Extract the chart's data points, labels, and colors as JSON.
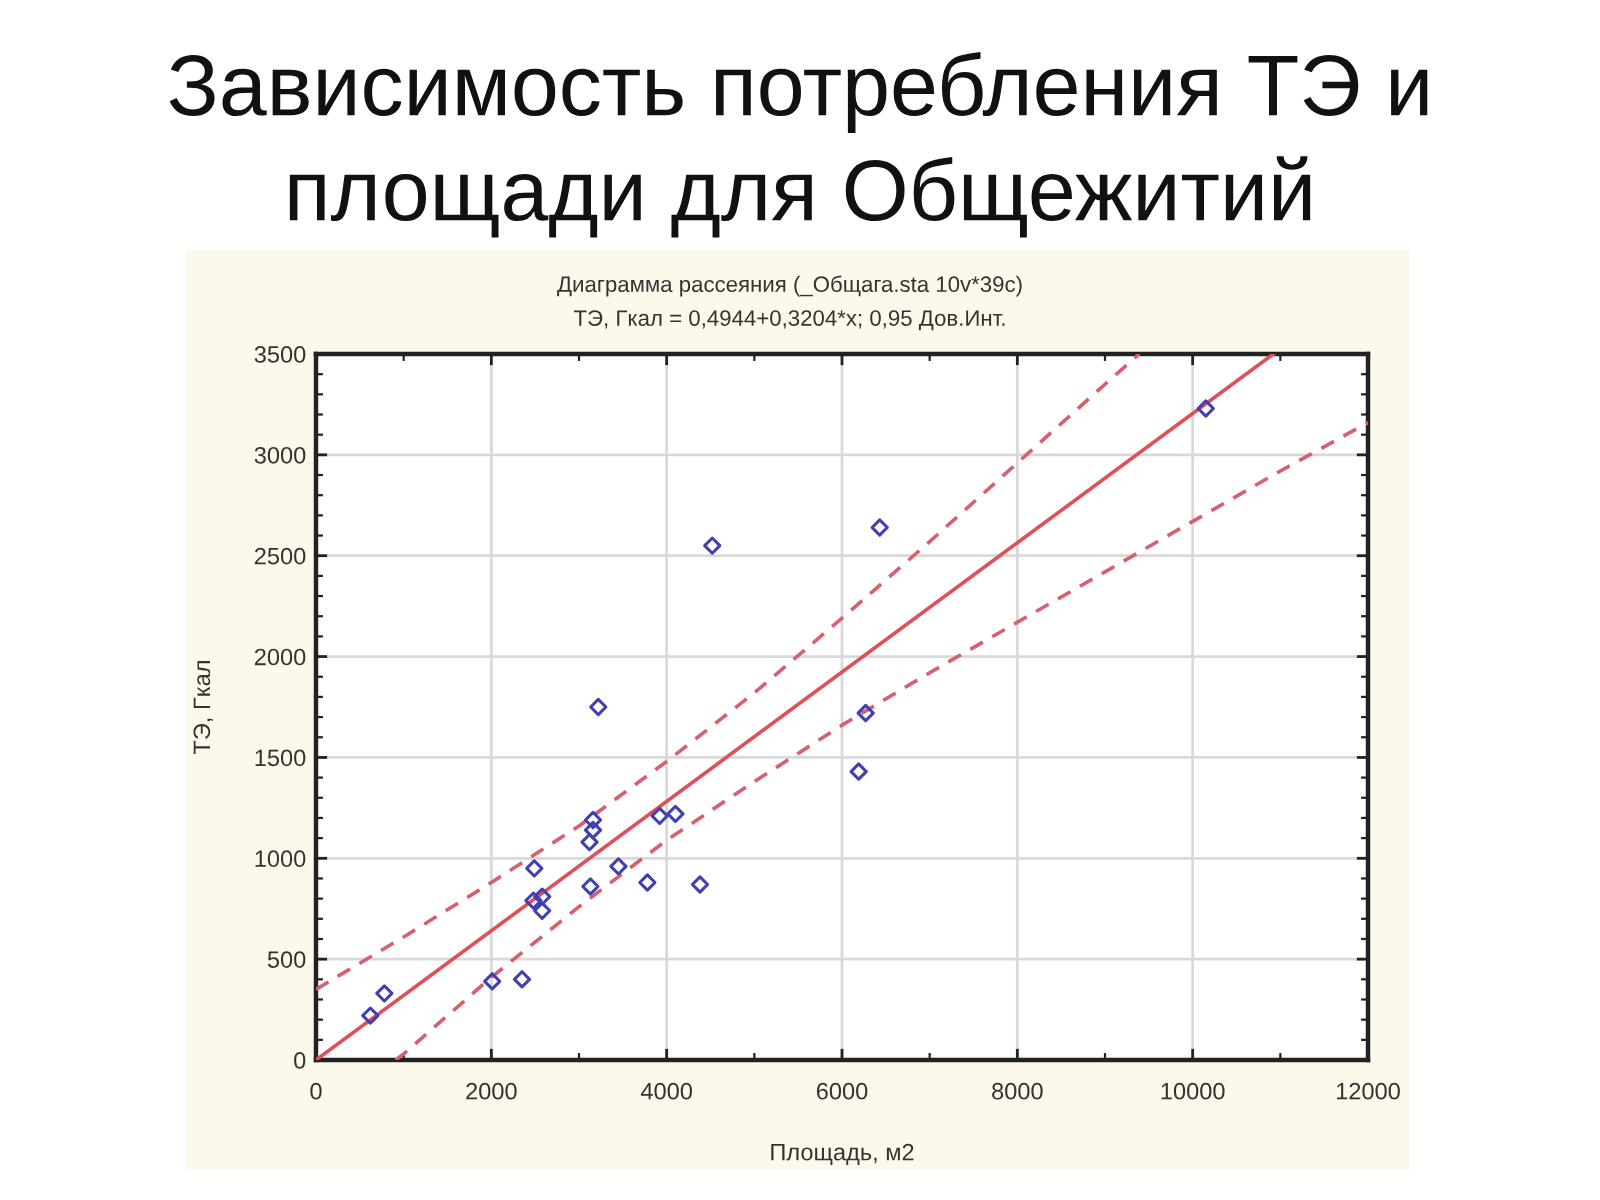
{
  "chart_data": {
    "type": "scatter",
    "title": "Зависимость потребления ТЭ и\nплощади для Общежитий",
    "subtitle": "Диаграмма рассеяния (_Общага.sta 10v*39c)",
    "annotations": [
      "ТЭ, Гкал = 0,4944+0,3204*x; 0,95 Дов.Инт."
    ],
    "xlabel": "Площадь, м2",
    "ylabel": "ТЭ, Гкал",
    "series": [
      {
        "color": "#4040b0",
        "marker": "diamond",
        "x": [
          620,
          780,
          2010,
          2350,
          2480,
          2490,
          2580,
          2580,
          3120,
          3130,
          3160,
          3160,
          3220,
          3450,
          3780,
          3920,
          4100,
          4380,
          4520,
          6190,
          6270,
          6430,
          10150
        ],
        "values": [
          220,
          330,
          390,
          400,
          790,
          950,
          810,
          740,
          1080,
          860,
          1140,
          1190,
          1750,
          960,
          880,
          1210,
          1220,
          870,
          2550,
          1430,
          1720,
          2640,
          3230
        ]
      },
      {
        "type": "line",
        "color": "#e0505a",
        "line_style": "solid",
        "x": [
          0,
          10920
        ],
        "values": [
          0,
          3500
        ]
      },
      {
        "type": "line",
        "color": "#d8606e",
        "line_style": "dashed",
        "x": [
          0,
          1000,
          2000,
          3000,
          4000,
          5000,
          6000,
          7000,
          8000,
          9000,
          9390
        ],
        "values": [
          350,
          610,
          880,
          1160,
          1480,
          1820,
          2190,
          2570,
          2960,
          3350,
          3500
        ]
      },
      {
        "type": "line",
        "color": "#d8606e",
        "line_style": "dashed",
        "x": [
          910,
          1000,
          2000,
          3000,
          4000,
          5000,
          6000,
          7000,
          8000,
          9000,
          10000,
          11000,
          12000
        ],
        "values": [
          0,
          30,
          410,
          760,
          1090,
          1380,
          1660,
          1920,
          2170,
          2420,
          2670,
          2920,
          3160
        ]
      }
    ],
    "xlim": [
      0,
      12000
    ],
    "xticks": [
      0,
      {
        "value": 1000,
        "label": null
      },
      2000,
      {
        "value": 3000,
        "label": null
      },
      4000,
      {
        "value": 5000,
        "label": null
      },
      6000,
      {
        "value": 7000,
        "label": null
      },
      8000,
      {
        "value": 9000,
        "label": null
      },
      10000,
      {
        "value": 11000,
        "label": null
      },
      12000
    ],
    "ylim": [
      0,
      3500
    ],
    "yticks": [
      0,
      {
        "value": 100,
        "label": null
      },
      {
        "value": 200,
        "label": null
      },
      {
        "value": 300,
        "label": null
      },
      {
        "value": 400,
        "label": null
      },
      500,
      {
        "value": 600,
        "label": null
      },
      {
        "value": 700,
        "label": null
      },
      {
        "value": 800,
        "label": null
      },
      {
        "value": 900,
        "label": null
      },
      1000,
      {
        "value": 1100,
        "label": null
      },
      {
        "value": 1200,
        "label": null
      },
      {
        "value": 1300,
        "label": null
      },
      {
        "value": 1400,
        "label": null
      },
      1500,
      {
        "value": 1600,
        "label": null
      },
      {
        "value": 1700,
        "label": null
      },
      {
        "value": 1800,
        "label": null
      },
      {
        "value": 1900,
        "label": null
      },
      2000,
      {
        "value": 2100,
        "label": null
      },
      {
        "value": 2200,
        "label": null
      },
      {
        "value": 2300,
        "label": null
      },
      {
        "value": 2400,
        "label": null
      },
      2500,
      {
        "value": 2600,
        "label": null
      },
      {
        "value": 2700,
        "label": null
      },
      {
        "value": 2800,
        "label": null
      },
      {
        "value": 2900,
        "label": null
      },
      3000,
      {
        "value": 3100,
        "label": null
      },
      {
        "value": 3200,
        "label": null
      },
      {
        "value": 3300,
        "label": null
      },
      {
        "value": 3400,
        "label": null
      },
      3500
    ],
    "grid": true
  }
}
